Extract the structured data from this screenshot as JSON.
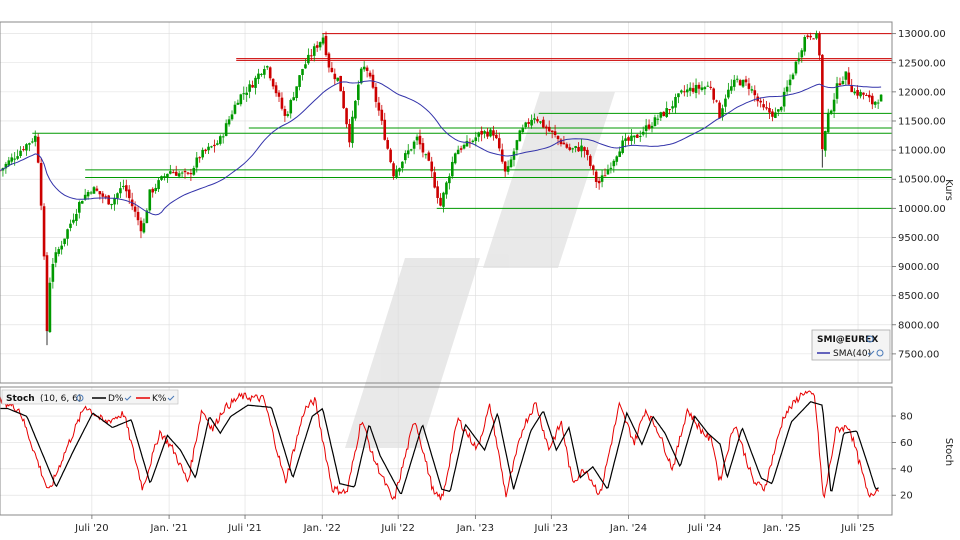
{
  "chart_data": [
    {
      "type": "candlestick",
      "instrument": "SMI@EUREX",
      "ylabel": "Kurs",
      "ylim": [
        7000,
        13200
      ],
      "y_ticks": [
        7500,
        8000,
        8500,
        9000,
        9500,
        10000,
        10500,
        11000,
        11500,
        12000,
        12500,
        13000
      ],
      "y_tick_labels": [
        "7500.00",
        "8000.00",
        "8500.00",
        "9000.00",
        "9500.00",
        "10000.00",
        "10500.00",
        "11000.00",
        "11500.00",
        "12000.00",
        "12500.00",
        "13000.00"
      ],
      "x_ticks": [
        {
          "date": "2020-07-01",
          "label": "Juli '20"
        },
        {
          "date": "2021-01-01",
          "label": "Jan. '21"
        },
        {
          "date": "2021-07-01",
          "label": "Juli '21"
        },
        {
          "date": "2022-01-01",
          "label": "Jan. '22"
        },
        {
          "date": "2022-07-01",
          "label": "Juli '22"
        },
        {
          "date": "2023-01-01",
          "label": "Jan. '23"
        },
        {
          "date": "2023-07-01",
          "label": "Juli '23"
        },
        {
          "date": "2024-01-01",
          "label": "Jan. '24"
        },
        {
          "date": "2024-07-01",
          "label": "Juli '24"
        },
        {
          "date": "2025-01-01",
          "label": "Jan. '25"
        },
        {
          "date": "2025-07-01",
          "label": "Juli '25"
        }
      ],
      "x_range": [
        "2019-11-25",
        "2025-09-20"
      ],
      "close_path": [
        {
          "date": "2019-11-25",
          "value": 10650
        },
        {
          "date": "2020-01-20",
          "value": 11050
        },
        {
          "date": "2020-02-20",
          "value": 11250
        },
        {
          "date": "2020-03-05",
          "value": 9800
        },
        {
          "date": "2020-03-16",
          "value": 7900
        },
        {
          "date": "2020-03-25",
          "value": 9000
        },
        {
          "date": "2020-04-20",
          "value": 9400
        },
        {
          "date": "2020-06-05",
          "value": 10150
        },
        {
          "date": "2020-07-01",
          "value": 10350
        },
        {
          "date": "2020-08-15",
          "value": 10100
        },
        {
          "date": "2020-09-15",
          "value": 10400
        },
        {
          "date": "2020-10-30",
          "value": 9600
        },
        {
          "date": "2020-11-15",
          "value": 10250
        },
        {
          "date": "2021-01-01",
          "value": 10650
        },
        {
          "date": "2021-02-15",
          "value": 10550
        },
        {
          "date": "2021-03-15",
          "value": 10900
        },
        {
          "date": "2021-05-01",
          "value": 11150
        },
        {
          "date": "2021-06-15",
          "value": 11900
        },
        {
          "date": "2021-07-15",
          "value": 12100
        },
        {
          "date": "2021-08-20",
          "value": 12500
        },
        {
          "date": "2021-10-05",
          "value": 11550
        },
        {
          "date": "2021-11-15",
          "value": 12400
        },
        {
          "date": "2021-12-10",
          "value": 12700
        },
        {
          "date": "2022-01-03",
          "value": 12950
        },
        {
          "date": "2022-01-20",
          "value": 12350
        },
        {
          "date": "2022-02-10",
          "value": 12200
        },
        {
          "date": "2022-03-07",
          "value": 11200
        },
        {
          "date": "2022-04-01",
          "value": 12300
        },
        {
          "date": "2022-04-15",
          "value": 12450
        },
        {
          "date": "2022-05-15",
          "value": 11700
        },
        {
          "date": "2022-06-20",
          "value": 10600
        },
        {
          "date": "2022-08-15",
          "value": 11200
        },
        {
          "date": "2022-09-15",
          "value": 10700
        },
        {
          "date": "2022-10-10",
          "value": 10050
        },
        {
          "date": "2022-11-15",
          "value": 11000
        },
        {
          "date": "2022-12-15",
          "value": 11100
        },
        {
          "date": "2023-01-15",
          "value": 11300
        },
        {
          "date": "2023-02-15",
          "value": 11300
        },
        {
          "date": "2023-03-15",
          "value": 10550
        },
        {
          "date": "2023-04-15",
          "value": 11250
        },
        {
          "date": "2023-05-20",
          "value": 11600
        },
        {
          "date": "2023-06-15",
          "value": 11400
        },
        {
          "date": "2023-07-15",
          "value": 11200
        },
        {
          "date": "2023-08-15",
          "value": 11000
        },
        {
          "date": "2023-09-15",
          "value": 11050
        },
        {
          "date": "2023-10-20",
          "value": 10400
        },
        {
          "date": "2023-11-15",
          "value": 10700
        },
        {
          "date": "2023-12-15",
          "value": 11100
        },
        {
          "date": "2024-01-15",
          "value": 11200
        },
        {
          "date": "2024-02-15",
          "value": 11400
        },
        {
          "date": "2024-04-05",
          "value": 11700
        },
        {
          "date": "2024-05-10",
          "value": 12000
        },
        {
          "date": "2024-06-01",
          "value": 12050
        },
        {
          "date": "2024-07-15",
          "value": 12100
        },
        {
          "date": "2024-08-05",
          "value": 11600
        },
        {
          "date": "2024-08-20",
          "value": 11950
        },
        {
          "date": "2024-09-15",
          "value": 12200
        },
        {
          "date": "2024-10-15",
          "value": 12100
        },
        {
          "date": "2024-11-15",
          "value": 11700
        },
        {
          "date": "2024-12-20",
          "value": 11600
        },
        {
          "date": "2025-01-25",
          "value": 12300
        },
        {
          "date": "2025-02-25",
          "value": 12950
        },
        {
          "date": "2025-03-15",
          "value": 13000
        },
        {
          "date": "2025-03-30",
          "value": 12900
        },
        {
          "date": "2025-04-07",
          "value": 11000
        },
        {
          "date": "2025-04-20",
          "value": 11550
        },
        {
          "date": "2025-05-15",
          "value": 12150
        },
        {
          "date": "2025-06-01",
          "value": 12300
        },
        {
          "date": "2025-06-20",
          "value": 12000
        },
        {
          "date": "2025-07-15",
          "value": 11950
        },
        {
          "date": "2025-08-05",
          "value": 11800
        },
        {
          "date": "2025-08-20",
          "value": 11900
        }
      ],
      "candle_noise": 0.55,
      "annotations": [
        {
          "type": "hline",
          "color": "#cc0000",
          "value": 13000,
          "from": "2022-01-01",
          "to": "2025-09-20"
        },
        {
          "type": "hline",
          "color": "#cc0000",
          "value": 12570,
          "from": "2021-06-10",
          "to": "2025-09-20"
        },
        {
          "type": "hline",
          "color": "#cc0000",
          "value": 12540,
          "from": "2021-06-10",
          "to": "2025-09-20"
        },
        {
          "type": "hline",
          "color": "#009900",
          "value": 11630,
          "from": "2023-06-01",
          "to": "2025-09-20"
        },
        {
          "type": "hline",
          "color": "#009900",
          "value": 11380,
          "from": "2021-07-10",
          "to": "2025-09-20"
        },
        {
          "type": "hline",
          "color": "#009900",
          "value": 11290,
          "from": "2020-02-10",
          "to": "2025-09-20"
        },
        {
          "type": "hline",
          "color": "#009900",
          "value": 10660,
          "from": "2020-06-15",
          "to": "2025-09-20"
        },
        {
          "type": "hline",
          "color": "#009900",
          "value": 10530,
          "from": "2020-06-15",
          "to": "2025-09-20"
        },
        {
          "type": "hline",
          "color": "#009900",
          "value": 10000,
          "from": "2022-10-01",
          "to": "2025-09-20"
        }
      ],
      "colors": {
        "up": "#009900",
        "down": "#cc0000",
        "sma": "#3333aa",
        "grid": "#dddddd"
      },
      "legend": {
        "placement": "bottom-right",
        "title": "SMI@EUREX",
        "items": [
          {
            "label": "SMA(40)",
            "color": "#3333aa"
          }
        ]
      },
      "grid": true
    },
    {
      "type": "line",
      "name": "Stoch",
      "params": "(10, 6, 6)",
      "ylabel": "Stoch",
      "ylim": [
        5,
        102
      ],
      "y_ticks": [
        20,
        40,
        60,
        80
      ],
      "y_tick_labels": [
        "20",
        "40",
        "60",
        "80"
      ],
      "series": [
        {
          "name": "D%",
          "color": "#000000",
          "seed": 0.08
        },
        {
          "name": "K%",
          "color": "#e60000",
          "seed": 0.0
        }
      ],
      "k_path": [
        {
          "date": "2019-11-25",
          "value": 92
        },
        {
          "date": "2020-01-10",
          "value": 85
        },
        {
          "date": "2020-03-20",
          "value": 22
        },
        {
          "date": "2020-05-01",
          "value": 55
        },
        {
          "date": "2020-06-15",
          "value": 88
        },
        {
          "date": "2020-08-01",
          "value": 75
        },
        {
          "date": "2020-09-15",
          "value": 82
        },
        {
          "date": "2020-10-30",
          "value": 25
        },
        {
          "date": "2020-12-10",
          "value": 68
        },
        {
          "date": "2021-01-10",
          "value": 55
        },
        {
          "date": "2021-02-15",
          "value": 30
        },
        {
          "date": "2021-03-20",
          "value": 85
        },
        {
          "date": "2021-04-15",
          "value": 70
        },
        {
          "date": "2021-05-10",
          "value": 85
        },
        {
          "date": "2021-06-20",
          "value": 95
        },
        {
          "date": "2021-08-15",
          "value": 93
        },
        {
          "date": "2021-10-05",
          "value": 30
        },
        {
          "date": "2021-11-20",
          "value": 85
        },
        {
          "date": "2021-12-15",
          "value": 92
        },
        {
          "date": "2022-01-25",
          "value": 25
        },
        {
          "date": "2022-03-01",
          "value": 22
        },
        {
          "date": "2022-04-05",
          "value": 78
        },
        {
          "date": "2022-05-01",
          "value": 50
        },
        {
          "date": "2022-06-20",
          "value": 15
        },
        {
          "date": "2022-08-10",
          "value": 78
        },
        {
          "date": "2022-09-25",
          "value": 20
        },
        {
          "date": "2022-10-15",
          "value": 18
        },
        {
          "date": "2022-11-20",
          "value": 78
        },
        {
          "date": "2023-01-05",
          "value": 55
        },
        {
          "date": "2023-02-05",
          "value": 88
        },
        {
          "date": "2023-03-15",
          "value": 20
        },
        {
          "date": "2023-04-25",
          "value": 72
        },
        {
          "date": "2023-05-25",
          "value": 90
        },
        {
          "date": "2023-06-25",
          "value": 55
        },
        {
          "date": "2023-07-25",
          "value": 75
        },
        {
          "date": "2023-08-20",
          "value": 30
        },
        {
          "date": "2023-09-20",
          "value": 40
        },
        {
          "date": "2023-10-25",
          "value": 20
        },
        {
          "date": "2023-12-10",
          "value": 88
        },
        {
          "date": "2024-01-15",
          "value": 60
        },
        {
          "date": "2024-02-10",
          "value": 85
        },
        {
          "date": "2024-03-10",
          "value": 70
        },
        {
          "date": "2024-04-15",
          "value": 40
        },
        {
          "date": "2024-05-20",
          "value": 85
        },
        {
          "date": "2024-06-20",
          "value": 70
        },
        {
          "date": "2024-07-20",
          "value": 60
        },
        {
          "date": "2024-08-05",
          "value": 30
        },
        {
          "date": "2024-09-10",
          "value": 75
        },
        {
          "date": "2024-10-25",
          "value": 30
        },
        {
          "date": "2024-11-20",
          "value": 25
        },
        {
          "date": "2025-01-05",
          "value": 80
        },
        {
          "date": "2025-02-20",
          "value": 98
        },
        {
          "date": "2025-03-20",
          "value": 95
        },
        {
          "date": "2025-04-10",
          "value": 15
        },
        {
          "date": "2025-05-10",
          "value": 70
        },
        {
          "date": "2025-06-10",
          "value": 72
        },
        {
          "date": "2025-07-10",
          "value": 38
        },
        {
          "date": "2025-07-25",
          "value": 20
        },
        {
          "date": "2025-08-20",
          "value": 25
        }
      ],
      "d_lag_days": 18
    }
  ]
}
